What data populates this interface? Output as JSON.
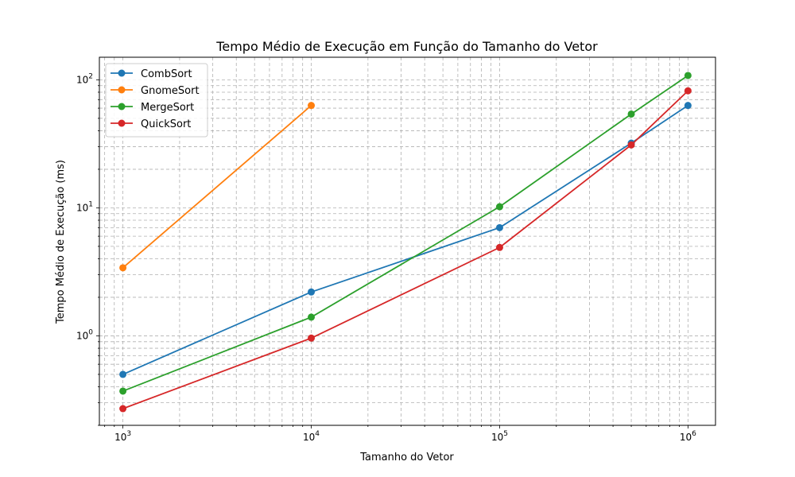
{
  "chart_data": {
    "type": "line",
    "title": "Tempo Médio de Execução em Função do Tamanho do Vetor",
    "xlabel": "Tamanho do Vetor",
    "ylabel": "Tempo Médio de Execução (ms)",
    "xscale": "log",
    "yscale": "log",
    "xlim": [
      750,
      1400000
    ],
    "ylim": [
      0.2,
      150
    ],
    "grid": true,
    "legend_position": "top-left",
    "x_ticks": [
      {
        "base": "10",
        "exp": "3"
      },
      {
        "base": "10",
        "exp": "4"
      },
      {
        "base": "10",
        "exp": "5"
      },
      {
        "base": "10",
        "exp": "6"
      }
    ],
    "y_ticks": [
      {
        "base": "10",
        "exp": "0"
      },
      {
        "base": "10",
        "exp": "1"
      },
      {
        "base": "10",
        "exp": "2"
      }
    ],
    "series": [
      {
        "name": "CombSort",
        "color": "#1f77b4",
        "x": [
          1000,
          10000,
          100000,
          500000,
          1000000
        ],
        "y": [
          0.5,
          2.2,
          7.0,
          32,
          63
        ]
      },
      {
        "name": "GnomeSort",
        "color": "#ff7f0e",
        "x": [
          1000,
          10000
        ],
        "y": [
          3.4,
          63
        ]
      },
      {
        "name": "MergeSort",
        "color": "#2ca02c",
        "x": [
          1000,
          10000,
          100000,
          500000,
          1000000
        ],
        "y": [
          0.37,
          1.4,
          10.2,
          54,
          108
        ]
      },
      {
        "name": "QuickSort",
        "color": "#d62728",
        "x": [
          1000,
          10000,
          100000,
          500000,
          1000000
        ],
        "y": [
          0.27,
          0.96,
          4.9,
          31,
          82
        ]
      }
    ]
  }
}
